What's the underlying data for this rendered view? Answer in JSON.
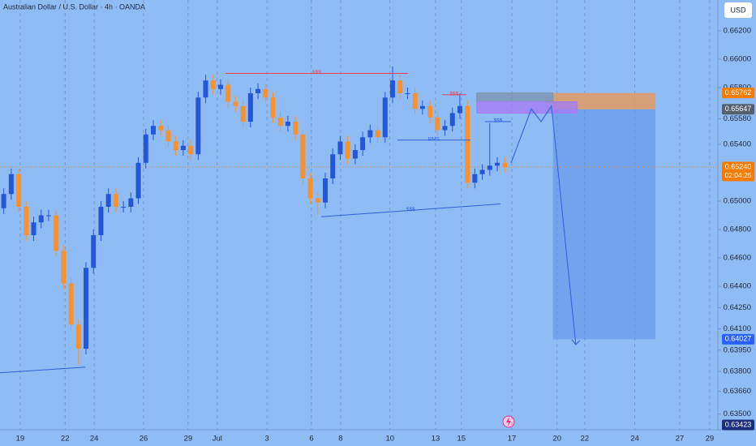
{
  "chart_data": {
    "type": "candlestick",
    "title": "Australian Dollar / U.S. Dollar · 4h · OANDA",
    "currency": "USD",
    "xlim": [
      0,
      192
    ],
    "ylim": [
      0.63389,
      0.66417
    ],
    "grid": "vertical",
    "colors": {
      "up": "#2456d8",
      "down": "#f5922f",
      "background": "#90bcf6"
    },
    "xticks": [
      {
        "value": 5.4,
        "label": "19"
      },
      {
        "value": 17.4,
        "label": "22"
      },
      {
        "value": 25.2,
        "label": "24"
      },
      {
        "value": 38.4,
        "label": "26"
      },
      {
        "value": 50.3,
        "label": "29"
      },
      {
        "value": 58.1,
        "label": "Jul"
      },
      {
        "value": 71.4,
        "label": "3"
      },
      {
        "value": 83.3,
        "label": "6"
      },
      {
        "value": 91.1,
        "label": "8"
      },
      {
        "value": 104.3,
        "label": "10"
      },
      {
        "value": 116.5,
        "label": "13"
      },
      {
        "value": 123.4,
        "label": "15"
      },
      {
        "value": 136.9,
        "label": "17"
      },
      {
        "value": 149,
        "label": "20"
      },
      {
        "value": 156.4,
        "label": "22"
      },
      {
        "value": 169.8,
        "label": "24"
      },
      {
        "value": 181.8,
        "label": "27"
      },
      {
        "value": 189.8,
        "label": "29"
      }
    ],
    "yticks": [
      {
        "value": 0.662,
        "label": "0.66200"
      },
      {
        "value": 0.66,
        "label": "0.66000"
      },
      {
        "value": 0.658,
        "label": "0.65800"
      },
      {
        "value": 0.6558,
        "label": "0.65580"
      },
      {
        "value": 0.654,
        "label": "0.65400"
      },
      {
        "value": 0.65,
        "label": "0.65000"
      },
      {
        "value": 0.648,
        "label": "0.64800"
      },
      {
        "value": 0.646,
        "label": "0.64600"
      },
      {
        "value": 0.644,
        "label": "0.64400"
      },
      {
        "value": 0.6425,
        "label": "0.64250"
      },
      {
        "value": 0.641,
        "label": "0.64100"
      },
      {
        "value": 0.6395,
        "label": "0.63950"
      },
      {
        "value": 0.638,
        "label": "0.63800"
      },
      {
        "value": 0.6366,
        "label": "0.63660"
      },
      {
        "value": 0.635,
        "label": "0.63500"
      }
    ],
    "x": [
      1,
      3,
      5,
      7,
      9,
      11,
      13,
      15,
      17,
      19,
      21,
      23,
      25,
      27,
      29,
      31,
      33,
      35,
      37,
      39,
      41,
      43,
      45,
      47,
      49,
      51,
      53,
      55,
      57,
      59,
      61,
      63,
      65,
      67,
      69,
      71,
      73,
      75,
      77,
      79,
      81,
      83,
      85,
      87,
      89,
      91,
      93,
      95,
      97,
      99,
      101,
      103,
      105,
      107,
      109,
      111,
      113,
      115,
      117,
      119,
      121,
      123,
      125,
      127,
      129,
      131,
      133,
      135
    ],
    "open": [
      0.6495,
      0.6505,
      0.6519,
      0.6496,
      0.6476,
      0.6485,
      0.649,
      0.649,
      0.6465,
      0.6442,
      0.6413,
      0.6396,
      0.6453,
      0.6476,
      0.6496,
      0.6505,
      0.6496,
      0.6496,
      0.6502,
      0.6527,
      0.6547,
      0.6553,
      0.655,
      0.6542,
      0.6536,
      0.6539,
      0.6533,
      0.6573,
      0.6585,
      0.6579,
      0.6582,
      0.657,
      0.6567,
      0.6556,
      0.6576,
      0.6579,
      0.6573,
      0.6559,
      0.6553,
      0.6556,
      0.6547,
      0.6516,
      0.6502,
      0.6499,
      0.6516,
      0.6533,
      0.6542,
      0.653,
      0.6536,
      0.6545,
      0.655,
      0.6545,
      0.6573,
      0.6585,
      0.6576,
      0.6576,
      0.6565,
      0.6567,
      0.6559,
      0.655,
      0.6553,
      0.6562,
      0.6567,
      0.6513,
      0.6519,
      0.6522,
      0.6525,
      0.6527
    ],
    "high": [
      0.6509,
      0.6523,
      0.6523,
      0.65,
      0.6489,
      0.6494,
      0.6494,
      0.6494,
      0.6469,
      0.6446,
      0.6417,
      0.6457,
      0.648,
      0.65,
      0.6509,
      0.6509,
      0.65,
      0.6506,
      0.6531,
      0.6551,
      0.6557,
      0.6557,
      0.6554,
      0.6546,
      0.6543,
      0.6543,
      0.6577,
      0.6589,
      0.6589,
      0.6586,
      0.6586,
      0.6574,
      0.6571,
      0.658,
      0.6583,
      0.6583,
      0.6577,
      0.6563,
      0.656,
      0.656,
      0.6551,
      0.652,
      0.6506,
      0.652,
      0.6537,
      0.6546,
      0.6546,
      0.654,
      0.6549,
      0.6554,
      0.6554,
      0.6577,
      0.6595,
      0.6589,
      0.658,
      0.658,
      0.6571,
      0.6571,
      0.6563,
      0.6557,
      0.6566,
      0.6576,
      0.6571,
      0.6523,
      0.6526,
      0.6555,
      0.6531,
      0.6531
    ],
    "low": [
      0.6491,
      0.6501,
      0.6492,
      0.6472,
      0.6472,
      0.6481,
      0.6486,
      0.6461,
      0.6438,
      0.6409,
      0.6385,
      0.6392,
      0.6449,
      0.6472,
      0.6492,
      0.6492,
      0.6492,
      0.6492,
      0.6498,
      0.6523,
      0.6543,
      0.6546,
      0.6538,
      0.6532,
      0.6532,
      0.6529,
      0.6529,
      0.6569,
      0.6575,
      0.6575,
      0.6566,
      0.6563,
      0.6552,
      0.6552,
      0.6572,
      0.6569,
      0.6555,
      0.6549,
      0.6549,
      0.6543,
      0.6512,
      0.6498,
      0.649,
      0.6495,
      0.6512,
      0.6529,
      0.6526,
      0.6526,
      0.6532,
      0.6541,
      0.6541,
      0.6541,
      0.6569,
      0.6572,
      0.6572,
      0.6561,
      0.6561,
      0.6555,
      0.6546,
      0.6546,
      0.6549,
      0.6558,
      0.6509,
      0.6509,
      0.6515,
      0.6518,
      0.6521,
      0.652
    ],
    "close": [
      0.6505,
      0.6519,
      0.6496,
      0.6476,
      0.6485,
      0.649,
      0.649,
      0.6465,
      0.6442,
      0.6413,
      0.6396,
      0.6453,
      0.6476,
      0.6496,
      0.6505,
      0.6496,
      0.6496,
      0.6502,
      0.6527,
      0.6547,
      0.6553,
      0.655,
      0.6542,
      0.6536,
      0.6539,
      0.6533,
      0.6573,
      0.6585,
      0.6579,
      0.6582,
      0.657,
      0.6567,
      0.6556,
      0.6576,
      0.6579,
      0.6573,
      0.6559,
      0.6553,
      0.6556,
      0.6547,
      0.6516,
      0.6502,
      0.6499,
      0.6516,
      0.6533,
      0.6542,
      0.653,
      0.6536,
      0.6545,
      0.655,
      0.6545,
      0.6573,
      0.6585,
      0.6576,
      0.6576,
      0.6565,
      0.6567,
      0.6559,
      0.655,
      0.6553,
      0.6562,
      0.6567,
      0.6513,
      0.6519,
      0.6522,
      0.6525,
      0.6527,
      0.6524
    ],
    "drawings": [
      {
        "label": "$$$",
        "color": "#e0475a",
        "x": [
          60.3,
          109.1
        ],
        "y": [
          0.659,
          0.659
        ]
      },
      {
        "label": "$$$",
        "color": "#e0475a",
        "x": [
          118.2,
          124.7
        ],
        "y": [
          0.6575,
          0.6575
        ]
      },
      {
        "label": "BMS",
        "color": "#2f5fd8",
        "x": [
          106.3,
          125.8
        ],
        "y": [
          0.6543,
          0.6543
        ]
      },
      {
        "label": "$$$",
        "color": "#2f5fd8",
        "x": [
          129.7,
          136.7
        ],
        "y": [
          0.6556,
          0.6556
        ]
      },
      {
        "label": "$$$",
        "color": "#2f5fd8",
        "x": [
          85.9,
          133.8
        ],
        "y": [
          0.6489,
          0.6498
        ]
      },
      {
        "color": "#2f5fd8",
        "x": [
          0,
          22.8
        ],
        "y": [
          0.6379,
          0.6383
        ]
      }
    ],
    "zones": [
      {
        "color": "#7d93b0",
        "x": [
          127.5,
          147.9
        ],
        "y": [
          0.657,
          0.65762
        ]
      },
      {
        "color": "#a47cf2",
        "x": [
          127.5,
          154.4
        ],
        "y": [
          0.6562,
          0.657
        ]
      }
    ],
    "position": {
      "x": [
        147.9,
        175.3
      ],
      "entry": 0.65647,
      "stop": 0.65762,
      "target": 0.64027,
      "stop_color": "#e29a62",
      "target_color": "#5d8ee8"
    },
    "projection": {
      "color": "#3a68e0",
      "x": [
        136.7,
        142.1,
        144.7,
        147.5,
        154
      ],
      "y": [
        0.6527,
        0.6565,
        0.6556,
        0.6567,
        0.6399
      ]
    },
    "price_labels": [
      {
        "value": 0.65762,
        "color": "#f57c00"
      },
      {
        "value": 0.65647,
        "color": "#55606e"
      },
      {
        "value": {
          "value": 0.6524,
          "label": "0.65240"
        },
        "countdown": "02:04:25",
        "color": "#f57c00"
      },
      {
        "value": 0.64027,
        "color": "#2962ff"
      },
      {
        "value": 0.63423,
        "color": "#1a2f7a"
      }
    ]
  }
}
